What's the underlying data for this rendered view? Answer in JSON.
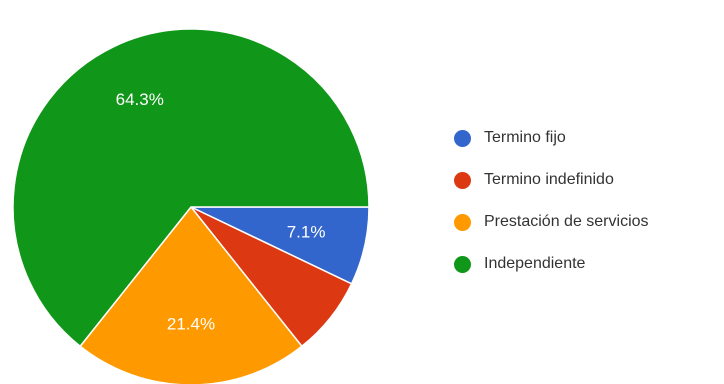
{
  "chart_data": {
    "type": "pie",
    "title": "",
    "categories": [
      "Termino fijo",
      "Termino indefinido",
      "Prestación de servicios",
      "Independiente"
    ],
    "values": [
      7.1,
      7.2,
      21.4,
      64.3
    ],
    "data_labels": [
      "7.1%",
      "",
      "21.4%",
      "64.3%"
    ],
    "colors": [
      "#3366cc",
      "#dc3912",
      "#ff9900",
      "#109618"
    ],
    "legend_position": "right",
    "start_angle_deg": 90,
    "direction": "clockwise"
  }
}
